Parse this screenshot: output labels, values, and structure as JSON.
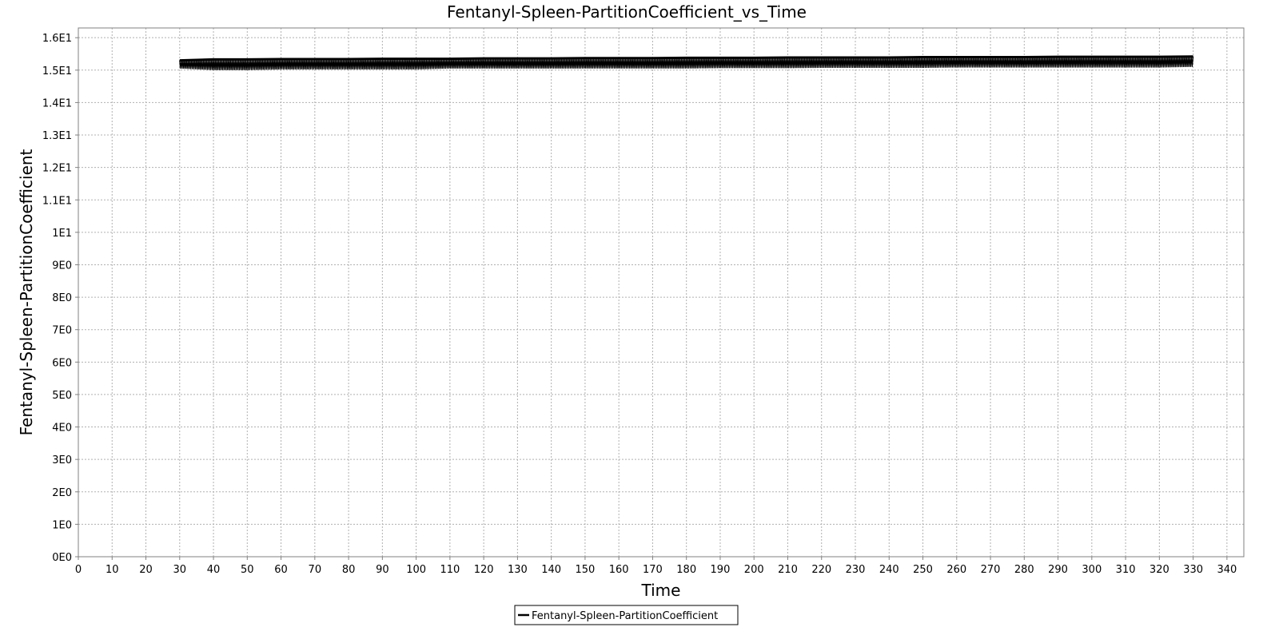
{
  "chart_data": {
    "type": "line",
    "title": "Fentanyl-Spleen-PartitionCoefficient_vs_Time",
    "xlabel": "Time",
    "ylabel": "Fentanyl-Spleen-PartitionCoefficient",
    "xlim": [
      0,
      345
    ],
    "ylim": [
      0,
      16.3
    ],
    "x_ticks": [
      0,
      10,
      20,
      30,
      40,
      50,
      60,
      70,
      80,
      90,
      100,
      110,
      120,
      130,
      140,
      150,
      160,
      170,
      180,
      190,
      200,
      210,
      220,
      230,
      240,
      250,
      260,
      270,
      280,
      290,
      300,
      310,
      320,
      330,
      340
    ],
    "x_tick_labels": [
      "0",
      "10",
      "20",
      "30",
      "40",
      "50",
      "60",
      "70",
      "80",
      "90",
      "100",
      "110",
      "120",
      "130",
      "140",
      "150",
      "160",
      "170",
      "180",
      "190",
      "200",
      "210",
      "220",
      "230",
      "240",
      "250",
      "260",
      "270",
      "280",
      "290",
      "300",
      "310",
      "320",
      "330",
      "340"
    ],
    "y_ticks": [
      0,
      1,
      2,
      3,
      4,
      5,
      6,
      7,
      8,
      9,
      10,
      11,
      12,
      13,
      14,
      15,
      16
    ],
    "y_tick_labels": [
      "0E0",
      "1E0",
      "2E0",
      "3E0",
      "4E0",
      "5E0",
      "6E0",
      "7E0",
      "8E0",
      "9E0",
      "1E1",
      "1.1E1",
      "1.2E1",
      "1.3E1",
      "1.4E1",
      "1.5E1",
      "1.6E1"
    ],
    "grid": true,
    "legend_position": "bottom-center",
    "series": [
      {
        "name": "Fentanyl-Spleen-PartitionCoefficient",
        "color": "#000000",
        "x": [
          30,
          40,
          50,
          60,
          70,
          80,
          90,
          100,
          110,
          120,
          130,
          140,
          150,
          160,
          170,
          180,
          190,
          200,
          210,
          220,
          230,
          240,
          250,
          260,
          270,
          280,
          290,
          300,
          310,
          320,
          330
        ],
        "y_upper": [
          15.3,
          15.33,
          15.33,
          15.34,
          15.34,
          15.34,
          15.35,
          15.35,
          15.35,
          15.36,
          15.36,
          15.36,
          15.37,
          15.37,
          15.37,
          15.38,
          15.38,
          15.38,
          15.39,
          15.39,
          15.39,
          15.39,
          15.4,
          15.4,
          15.4,
          15.4,
          15.41,
          15.41,
          15.41,
          15.41,
          15.42
        ],
        "y_lower": [
          15.05,
          15.0,
          15.0,
          15.02,
          15.02,
          15.02,
          15.02,
          15.02,
          15.05,
          15.05,
          15.05,
          15.05,
          15.05,
          15.05,
          15.05,
          15.05,
          15.06,
          15.06,
          15.06,
          15.07,
          15.07,
          15.07,
          15.07,
          15.08,
          15.08,
          15.08,
          15.08,
          15.08,
          15.08,
          15.08,
          15.1
        ],
        "oscillation_period": 0.5
      }
    ]
  }
}
